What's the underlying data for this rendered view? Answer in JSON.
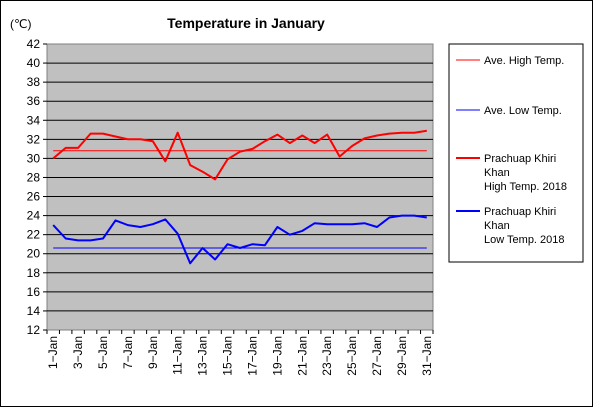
{
  "chart_data": {
    "type": "line",
    "title": "Temperature in January",
    "ylabel": "(℃)",
    "xlabel": "",
    "ylim": [
      12,
      42
    ],
    "yticks": [
      12,
      14,
      16,
      18,
      20,
      22,
      24,
      26,
      28,
      30,
      32,
      34,
      36,
      38,
      40,
      42
    ],
    "x": [
      "1-Jan",
      "2-Jan",
      "3-Jan",
      "4-Jan",
      "5-Jan",
      "6-Jan",
      "7-Jan",
      "8-Jan",
      "9-Jan",
      "10-Jan",
      "11-Jan",
      "12-Jan",
      "13-Jan",
      "14-Jan",
      "15-Jan",
      "16-Jan",
      "17-Jan",
      "18-Jan",
      "19-Jan",
      "20-Jan",
      "21-Jan",
      "22-Jan",
      "23-Jan",
      "24-Jan",
      "25-Jan",
      "26-Jan",
      "27-Jan",
      "28-Jan",
      "29-Jan",
      "30-Jan",
      "31-Jan"
    ],
    "xtick_labels": [
      "1−Jan",
      "3−Jan",
      "5−Jan",
      "7−Jan",
      "9−Jan",
      "11−Jan",
      "13−Jan",
      "15−Jan",
      "17−Jan",
      "19−Jan",
      "21−Jan",
      "23−Jan",
      "25−Jan",
      "27−Jan",
      "29−Jan",
      "31−Jan"
    ],
    "grid": true,
    "legend": "right",
    "series": [
      {
        "name": "Ave. High Temp.",
        "color": "#ff0000",
        "width": 1,
        "values": [
          30.8,
          30.8,
          30.8,
          30.8,
          30.8,
          30.8,
          30.8,
          30.8,
          30.8,
          30.8,
          30.8,
          30.8,
          30.8,
          30.8,
          30.8,
          30.8,
          30.8,
          30.8,
          30.8,
          30.8,
          30.8,
          30.8,
          30.8,
          30.8,
          30.8,
          30.8,
          30.8,
          30.8,
          30.8,
          30.8,
          30.8
        ]
      },
      {
        "name": "Ave. Low Temp.",
        "color": "#0000ff",
        "width": 1,
        "values": [
          20.6,
          20.6,
          20.6,
          20.6,
          20.6,
          20.6,
          20.6,
          20.6,
          20.6,
          20.6,
          20.6,
          20.6,
          20.6,
          20.6,
          20.6,
          20.6,
          20.6,
          20.6,
          20.6,
          20.6,
          20.6,
          20.6,
          20.6,
          20.6,
          20.6,
          20.6,
          20.6,
          20.6,
          20.6,
          20.6,
          20.6
        ]
      },
      {
        "name": "Prachuap Khiri Khan High Temp. 2018",
        "legend_lines": [
          "Prachuap Khiri",
          "Khan",
          "High Temp. 2018"
        ],
        "color": "#ff0000",
        "width": 2,
        "values": [
          30.0,
          31.1,
          31.1,
          32.6,
          32.6,
          32.3,
          32.0,
          32.0,
          31.8,
          29.7,
          32.7,
          29.3,
          28.6,
          27.8,
          29.9,
          30.7,
          31.0,
          31.8,
          32.5,
          31.6,
          32.4,
          31.6,
          32.5,
          30.2,
          31.3,
          32.1,
          32.4,
          32.6,
          32.7,
          32.7,
          32.9
        ]
      },
      {
        "name": "Prachuap Khiri Khan Low Temp. 2018",
        "legend_lines": [
          "Prachuap Khiri",
          "Khan",
          "Low Temp. 2018"
        ],
        "color": "#0000ff",
        "width": 2,
        "values": [
          23.0,
          21.6,
          21.4,
          21.4,
          21.6,
          23.5,
          23.0,
          22.8,
          23.1,
          23.6,
          22.1,
          19.0,
          20.6,
          19.4,
          21.0,
          20.6,
          21.0,
          20.9,
          22.8,
          22.0,
          22.4,
          23.2,
          23.1,
          23.1,
          23.1,
          23.2,
          22.8,
          23.8,
          24.0,
          24.0,
          23.8
        ]
      }
    ]
  }
}
